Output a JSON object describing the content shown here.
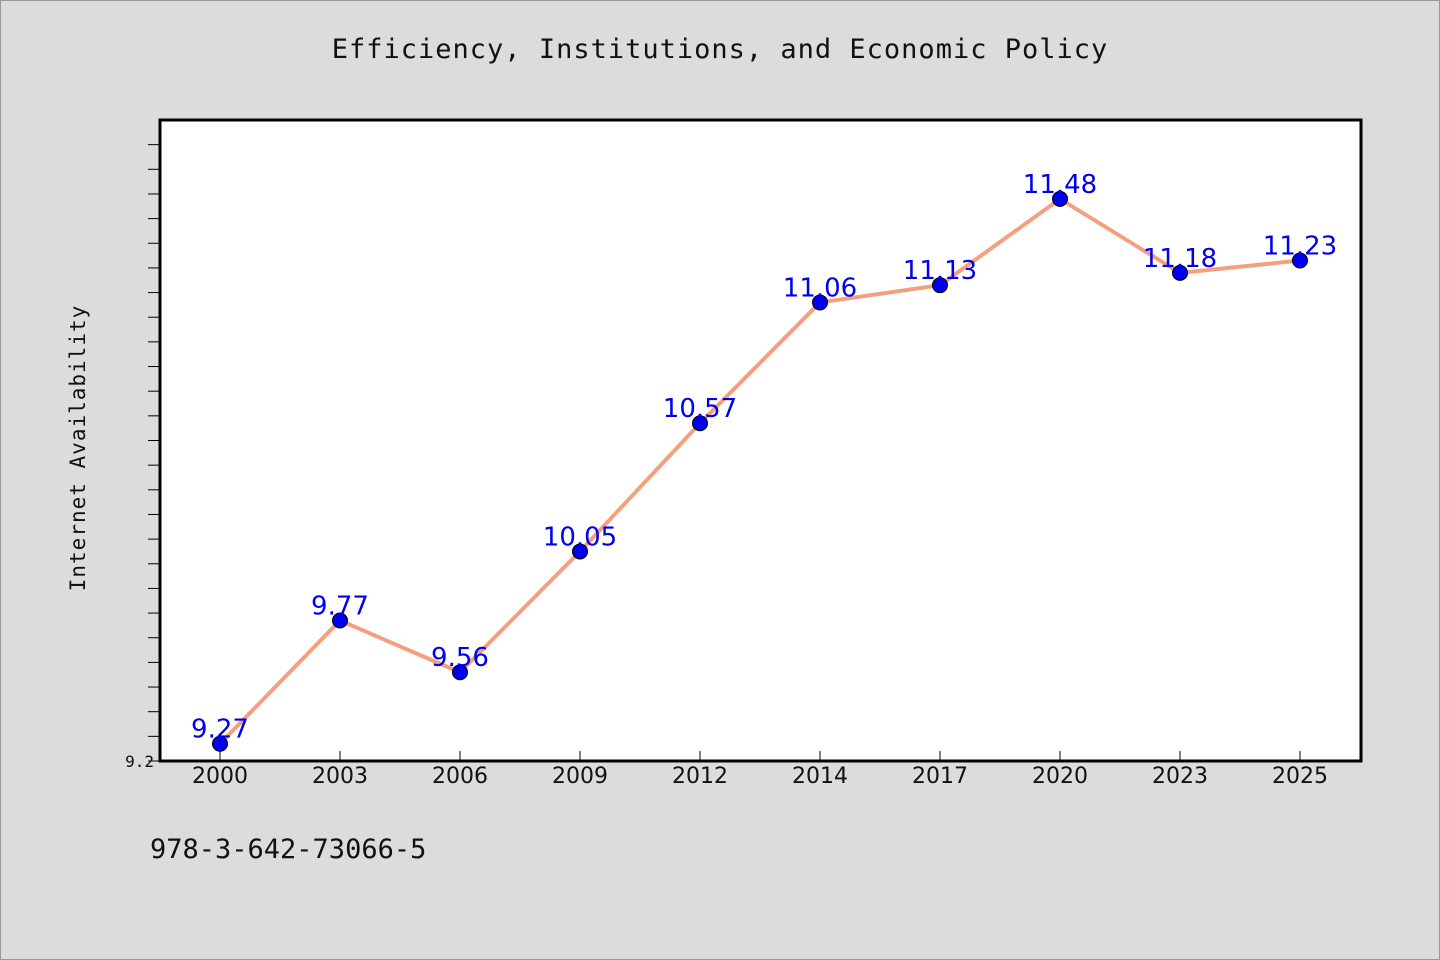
{
  "chart_data": {
    "type": "line",
    "title": "Efficiency, Institutions, and Economic Policy",
    "xlabel": "",
    "ylabel": "Internet Availability",
    "categories": [
      "2000",
      "2003",
      "2006",
      "2009",
      "2012",
      "2014",
      "2017",
      "2020",
      "2023",
      "2025"
    ],
    "series": [
      {
        "values": [
          9.27,
          9.77,
          9.56,
          10.05,
          10.57,
          11.06,
          11.13,
          11.48,
          11.18,
          11.23
        ],
        "line_color": "#f4a07e",
        "marker_color": "#0000ee",
        "label_color": "#0000ee"
      }
    ],
    "y_tick_labels": [
      "9.2"
    ],
    "ylim": [
      9.2,
      11.8
    ],
    "grid": false,
    "legend": "none"
  },
  "footer": {
    "isbn": "978-3-642-73066-5"
  },
  "colors": {
    "background": "#dcdcdc",
    "plot_background": "#ffffff",
    "axis": "#000000"
  }
}
